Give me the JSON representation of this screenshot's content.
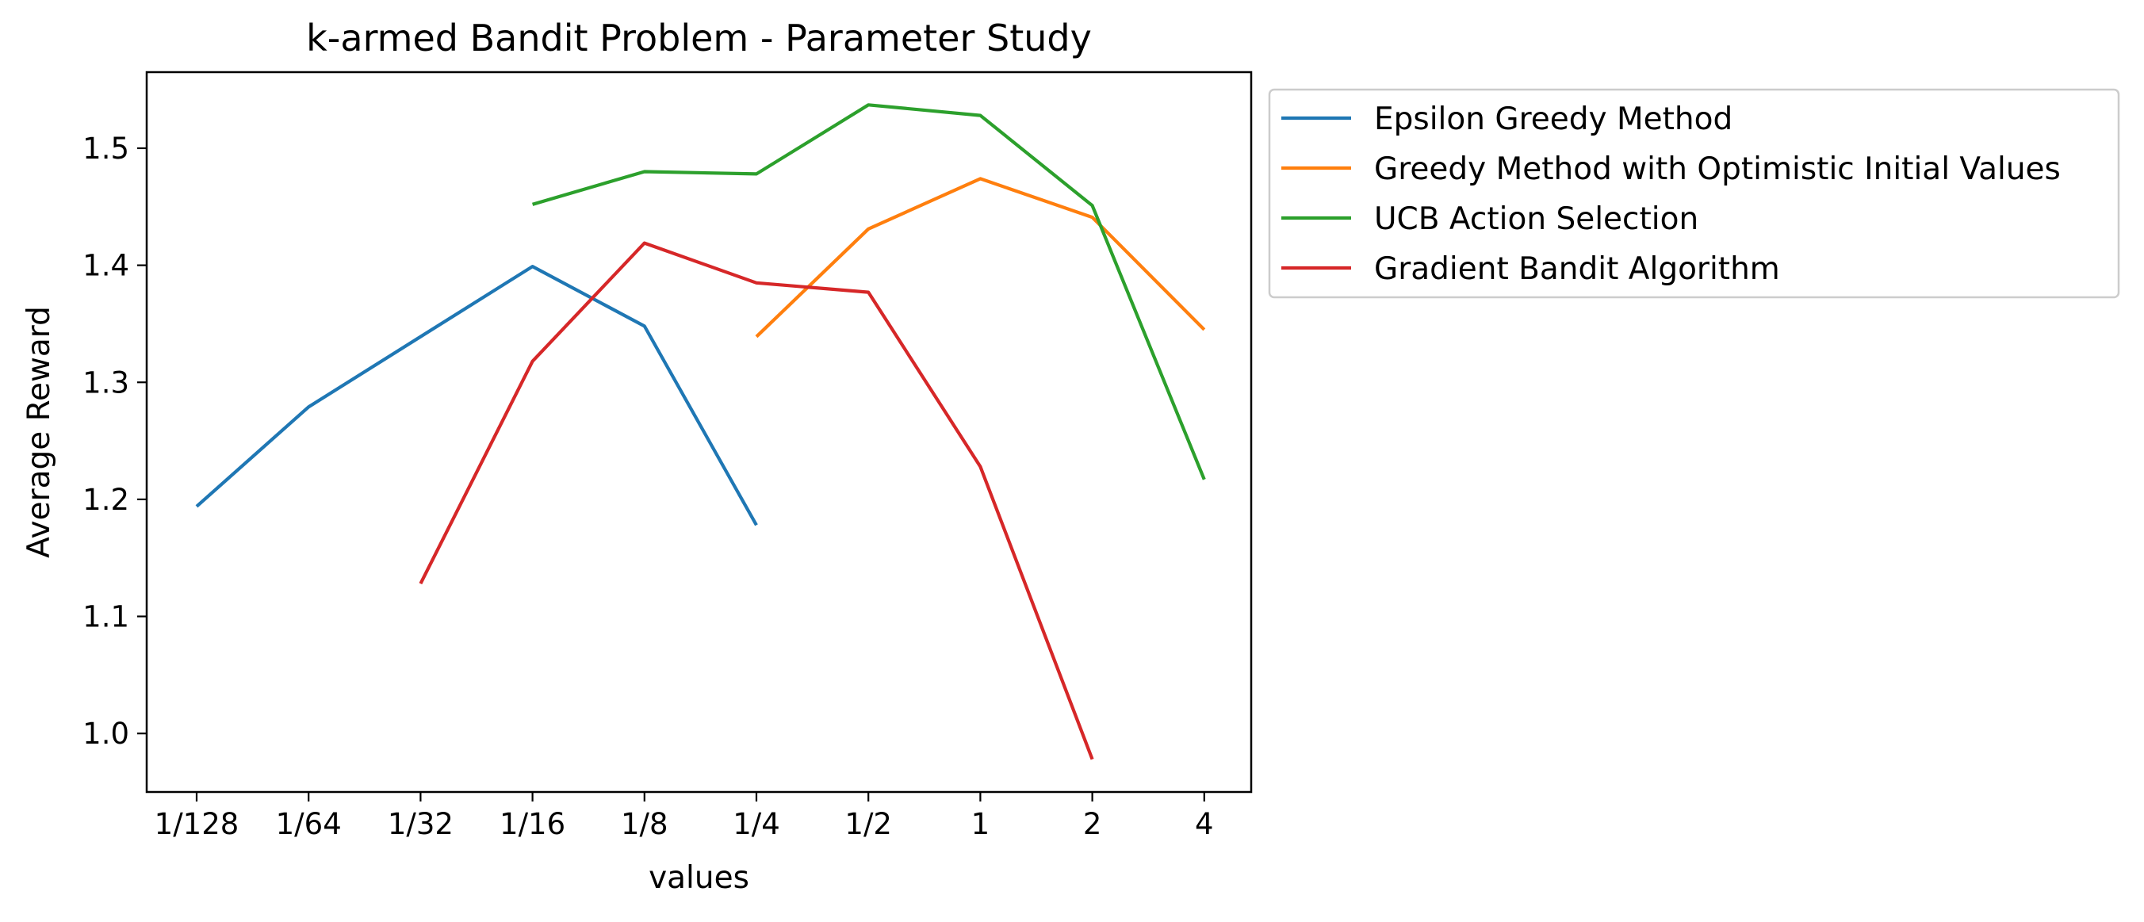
{
  "chart_data": {
    "type": "line",
    "title": "k-armed Bandit Problem - Parameter Study",
    "xlabel": "values",
    "ylabel": "Average Reward",
    "categories": [
      "1/128",
      "1/64",
      "1/32",
      "1/16",
      "1/8",
      "1/4",
      "1/2",
      "1",
      "2",
      "4"
    ],
    "ylim": [
      0.95,
      1.565
    ],
    "yticks": [
      1.0,
      1.1,
      1.2,
      1.3,
      1.4,
      1.5
    ],
    "ytick_labels": [
      "1.0",
      "1.1",
      "1.2",
      "1.3",
      "1.4",
      "1.5"
    ],
    "grid": false,
    "legend_position": "outside right, top",
    "series": [
      {
        "name": "Epsilon Greedy Method",
        "color": "#1f77b4",
        "values": [
          1.194,
          1.279,
          1.339,
          1.399,
          1.348,
          1.178,
          null,
          null,
          null,
          null
        ]
      },
      {
        "name": "Greedy Method with Optimistic Initial Values",
        "color": "#ff7f0e",
        "values": [
          null,
          null,
          null,
          null,
          null,
          1.339,
          1.431,
          1.474,
          1.441,
          1.345
        ]
      },
      {
        "name": "UCB Action Selection",
        "color": "#2ca02c",
        "values": [
          null,
          null,
          null,
          1.452,
          1.48,
          1.478,
          1.537,
          1.528,
          1.451,
          1.217
        ]
      },
      {
        "name": "Gradient Bandit Algorithm",
        "color": "#d62728",
        "values": [
          null,
          null,
          1.128,
          1.318,
          1.419,
          1.385,
          1.377,
          1.228,
          0.978,
          null
        ]
      }
    ]
  }
}
